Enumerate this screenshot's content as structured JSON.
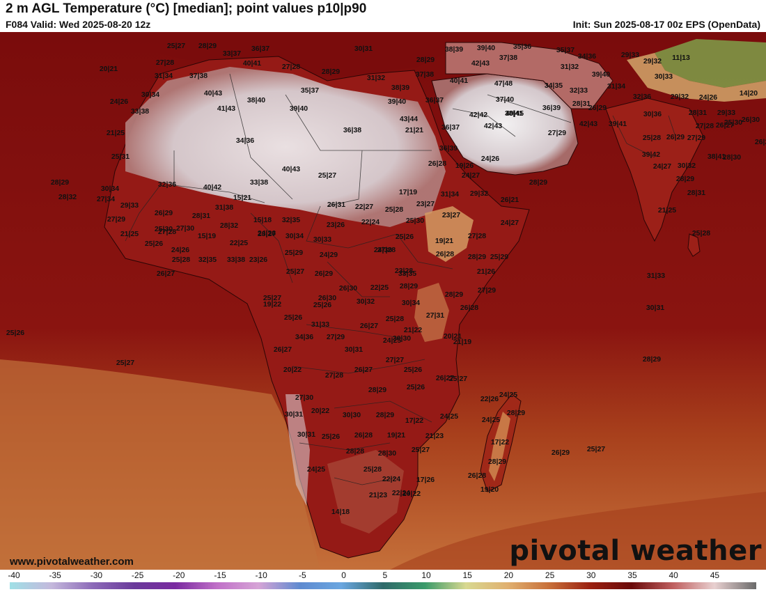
{
  "header": {
    "title": "2 m AGL Temperature (°C) [median]; point values p10|p90",
    "valid": "F084 Valid: Wed 2025-08-20 12z",
    "init": "Init: Sun 2025-08-17 00z EPS (OpenData)"
  },
  "footer": {
    "website": "www.pivotalweather.com",
    "brand": "pivotal weather"
  },
  "colors": {
    "ocean": "#7a0c0c",
    "land_hot": "#9a1a1a",
    "desert": "#e6e2e4",
    "south_atlantic": "#c5703a",
    "highland_cool": "#e0b070"
  },
  "colorbar": {
    "ticks": [
      "-40",
      "-35",
      "-30",
      "-25",
      "-20",
      "-15",
      "-10",
      "-5",
      "0",
      "5",
      "10",
      "15",
      "20",
      "25",
      "30",
      "35",
      "40",
      "45"
    ],
    "stops": [
      "#9fe0e6",
      "#c4b8dc",
      "#8c6ab8",
      "#6a3a9a",
      "#7a2aa0",
      "#c070c8",
      "#d6a4d6",
      "#5e8ad0",
      "#6aa6e0",
      "#2f6a6a",
      "#3a9a6a",
      "#d8d890",
      "#e0b070",
      "#c8703a",
      "#9a2010",
      "#6a0a0a",
      "#c06060",
      "#e8d0d0",
      "#6a6a6a"
    ]
  },
  "point_values": [
    "25|27",
    "28|29",
    "33|37",
    "36|37",
    "30|31",
    "28|29",
    "38|39",
    "39|40",
    "35|36",
    "35|37",
    "29|33",
    "20|21",
    "27|28",
    "40|41",
    "27|28",
    "42|43",
    "37|38",
    "31|32",
    "34|36",
    "29|32",
    "11|13",
    "31|34",
    "37|38",
    "28|29",
    "31|32",
    "37|38",
    "40|41",
    "47|48",
    "34|35",
    "39|40",
    "30|33",
    "24|26",
    "30|34",
    "40|43",
    "38|39",
    "36|37",
    "32|33",
    "31|34",
    "14|20",
    "29|32",
    "24|26",
    "33|38",
    "41|43",
    "38|40",
    "35|37",
    "39|40",
    "37|40",
    "32|36",
    "21|25",
    "39|40",
    "30|36",
    "28|31",
    "43|44",
    "42|42",
    "38|41",
    "36|39",
    "42|43",
    "21|21",
    "36|37",
    "40|45",
    "42|43",
    "39|41",
    "27|28",
    "29|33",
    "26|30",
    "28|31",
    "26|29",
    "25|30",
    "34|36",
    "36|38",
    "36|39",
    "27|29",
    "25|28",
    "26|29",
    "27|29",
    "26|27",
    "26|29",
    "28|30",
    "28|29",
    "38|41",
    "39|42",
    "40|43",
    "25|27",
    "24|26",
    "24|27",
    "30|32",
    "25|31",
    "30|34",
    "32|36",
    "40|42",
    "33|38",
    "19|26",
    "26|28",
    "24|27",
    "28|29",
    "28|29",
    "28|32",
    "27|34",
    "15|21",
    "17|19",
    "31|34",
    "29|32",
    "26|21",
    "28|31",
    "29|33",
    "31|38",
    "26|31",
    "22|27",
    "25|28",
    "23|27",
    "27|29",
    "26|29",
    "28|31",
    "28|32",
    "15|18",
    "32|35",
    "22|24",
    "23|27",
    "24|27",
    "21|25",
    "25|30",
    "25|30",
    "27|30",
    "23|27",
    "30|34",
    "23|26",
    "30|33",
    "25|26",
    "27|28",
    "25|28",
    "21|25",
    "15|19",
    "22|25",
    "24|26",
    "25|29",
    "19|21",
    "27|28",
    "25|26",
    "24|26",
    "27|28",
    "26|28",
    "25|28",
    "32|35",
    "33|38",
    "23|26",
    "24|29",
    "24|30",
    "25|29",
    "33|35",
    "28|29",
    "25|27",
    "26|29",
    "23|28",
    "21|26",
    "31|33",
    "26|27",
    "25|27",
    "26|30",
    "26|30",
    "22|25",
    "28|29",
    "28|29",
    "27|29",
    "19|22",
    "25|26",
    "30|32",
    "30|34",
    "26|28",
    "30|31",
    "25|26",
    "27|31",
    "31|33",
    "26|27",
    "25|28",
    "21|22",
    "34|36",
    "27|29",
    "24|25",
    "20|21",
    "25|26",
    "30|31",
    "30|30",
    "21|19",
    "26|27",
    "25|27",
    "27|27",
    "20|22",
    "27|28",
    "26|27",
    "25|26",
    "26|27",
    "25|27",
    "24|25",
    "28|29",
    "28|29",
    "25|26",
    "27|30",
    "22|26",
    "28|29",
    "20|22",
    "30|31",
    "30|30",
    "28|29",
    "24|25",
    "24|25",
    "17|22",
    "30|31",
    "25|26",
    "26|28",
    "19|21",
    "21|23",
    "17|22",
    "28|28",
    "28|30",
    "25|27",
    "26|29",
    "25|27",
    "28|29",
    "24|25",
    "25|28",
    "22|24",
    "17|26",
    "26|28",
    "22|24",
    "21|23",
    "20|22",
    "19|20",
    "14|18"
  ]
}
